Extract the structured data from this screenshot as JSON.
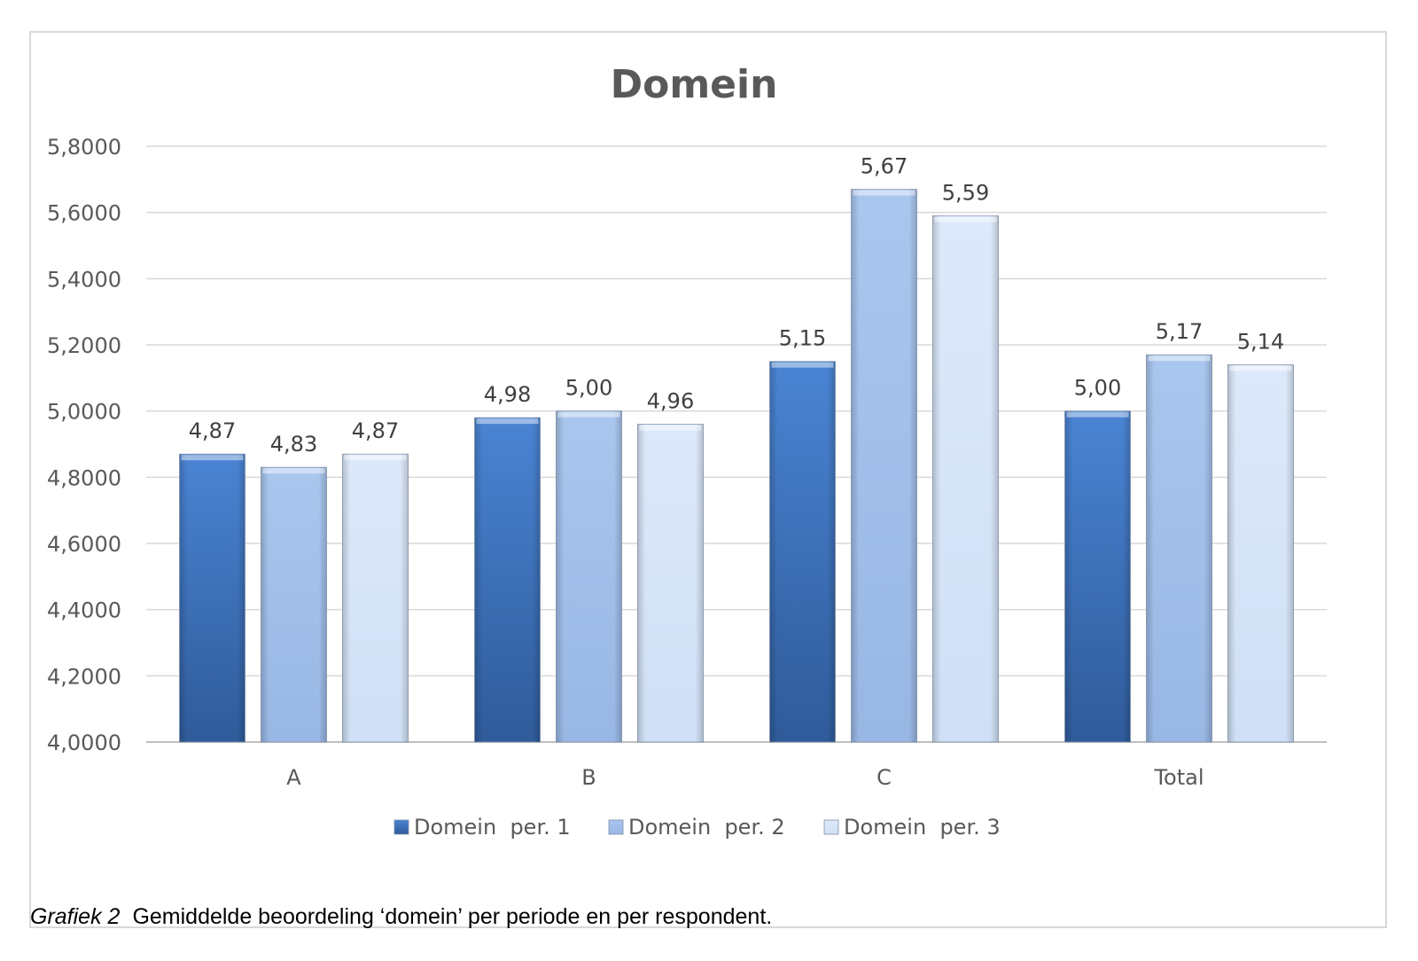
{
  "chart_data": {
    "type": "bar",
    "title": "Domein",
    "categories": [
      "A",
      "B",
      "C",
      "Total"
    ],
    "series": [
      {
        "name": "Domein  per. 1",
        "values": [
          4.87,
          4.98,
          5.15,
          5.0
        ],
        "labels": [
          "4,87",
          "4,98",
          "5,15",
          "5,00"
        ],
        "color": "#3d6fb5"
      },
      {
        "name": "Domein  per. 2",
        "values": [
          4.83,
          5.0,
          5.67,
          5.17
        ],
        "labels": [
          "4,83",
          "5,00",
          "5,67",
          "5,17"
        ],
        "color": "#a3c0ea"
      },
      {
        "name": "Domein  per. 3",
        "values": [
          4.87,
          4.96,
          5.59,
          5.14
        ],
        "labels": [
          "4,87",
          "4,96",
          "5,59",
          "5,14"
        ],
        "color": "#d6e4f8"
      }
    ],
    "ylim": [
      4.0,
      5.8
    ],
    "yticks": [
      "4,0000",
      "4,2000",
      "4,4000",
      "4,6000",
      "4,8000",
      "5,0000",
      "5,2000",
      "5,4000",
      "5,6000",
      "5,8000"
    ],
    "xlabel": "",
    "ylabel": "",
    "grid": true,
    "legend_position": "bottom"
  },
  "caption": {
    "label": "Grafiek 2",
    "text": "Gemiddelde beoordeling ‘domein’ per periode en per respondent."
  }
}
